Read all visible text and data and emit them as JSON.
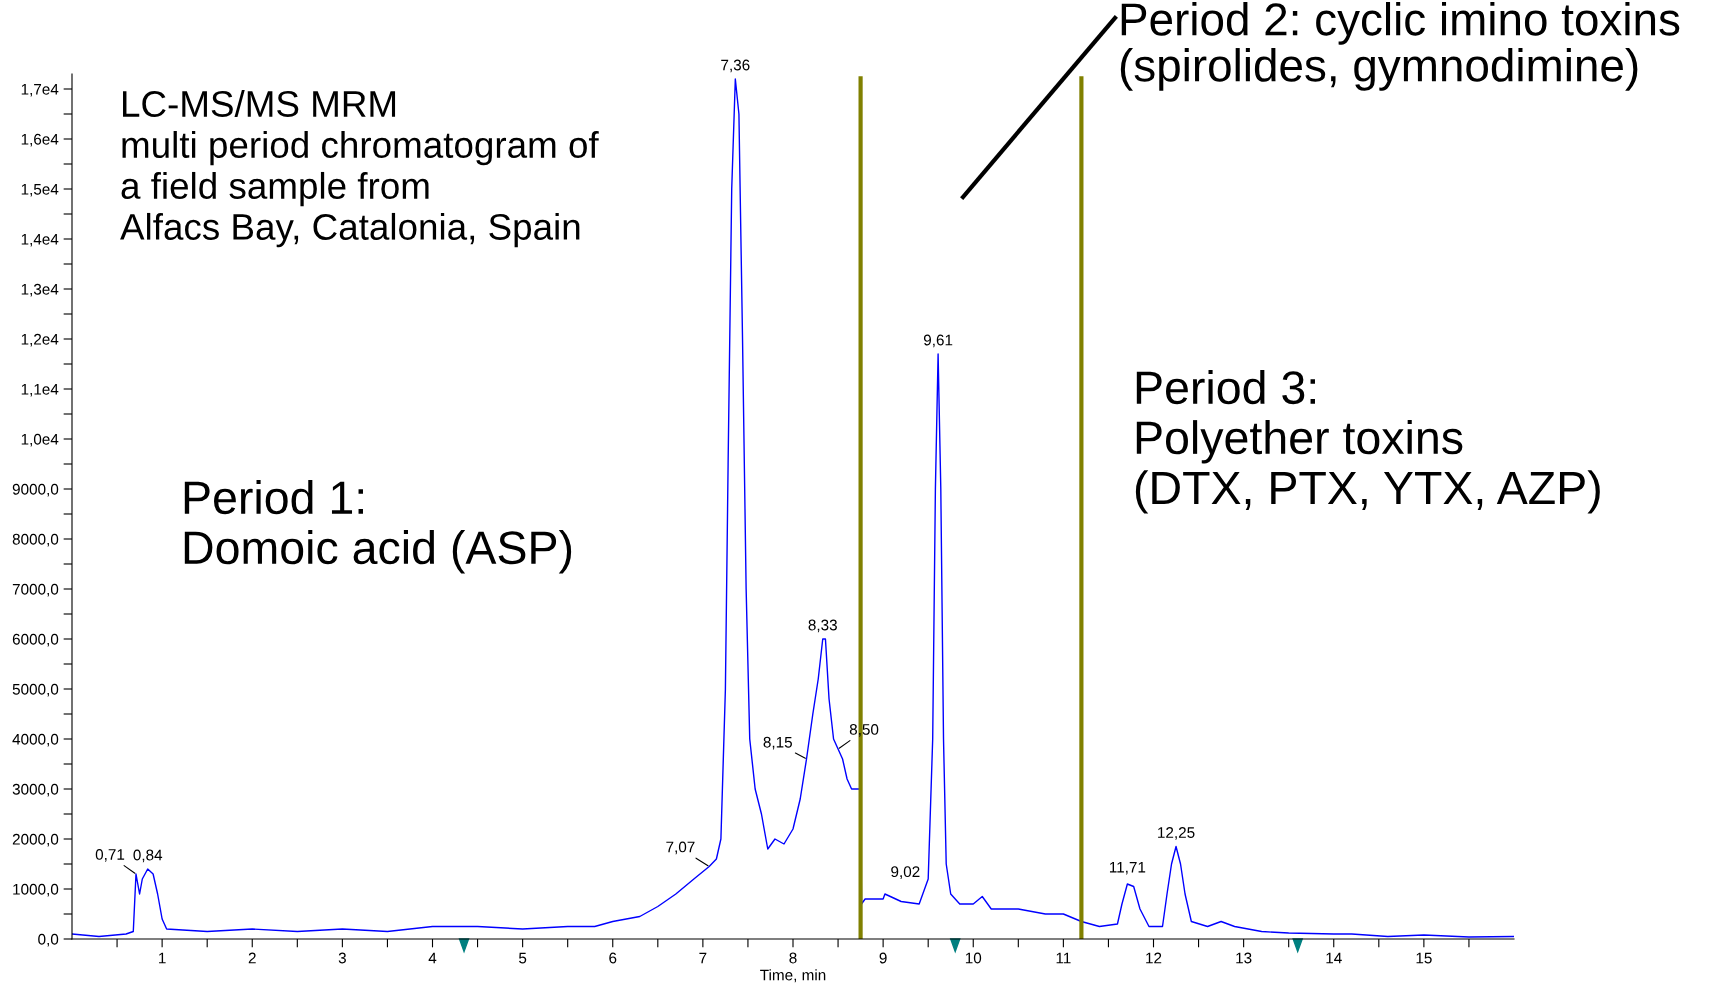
{
  "chart_data": {
    "type": "line",
    "xlabel": "Time, min",
    "x": [
      0,
      0.3,
      0.6,
      0.68,
      0.71,
      0.75,
      0.78,
      0.84,
      0.9,
      0.95,
      1.0,
      1.05,
      1.5,
      2,
      2.5,
      3,
      3.5,
      4,
      4.5,
      5,
      5.5,
      5.8,
      6.0,
      6.3,
      6.5,
      6.7,
      6.9,
      7.07,
      7.15,
      7.2,
      7.25,
      7.28,
      7.32,
      7.36,
      7.4,
      7.44,
      7.48,
      7.52,
      7.58,
      7.65,
      7.72,
      7.8,
      7.9,
      8.0,
      8.08,
      8.15,
      8.22,
      8.28,
      8.33,
      8.36,
      8.4,
      8.45,
      8.5,
      8.55,
      8.6,
      8.65,
      8.7,
      8.75,
      8.76,
      8.8,
      9.0,
      9.02,
      9.2,
      9.4,
      9.5,
      9.55,
      9.58,
      9.61,
      9.64,
      9.67,
      9.7,
      9.75,
      9.85,
      10.0,
      10.1,
      10.2,
      10.5,
      10.8,
      11.0,
      11.2,
      11.4,
      11.6,
      11.65,
      11.71,
      11.78,
      11.85,
      11.95,
      12.1,
      12.15,
      12.2,
      12.25,
      12.3,
      12.35,
      12.42,
      12.6,
      12.75,
      12.9,
      13.2,
      13.5,
      14.0,
      14.2,
      14.6,
      15.0,
      15.5,
      16.0
    ],
    "series": [
      {
        "color": "#0000ff",
        "values": [
          100,
          50,
          100,
          150,
          1300,
          900,
          1200,
          1400,
          1300,
          900,
          400,
          200,
          150,
          200,
          150,
          200,
          150,
          250,
          250,
          200,
          250,
          250,
          350,
          450,
          650,
          900,
          1200,
          1450,
          1600,
          2000,
          5000,
          9500,
          15000,
          17200,
          16500,
          12000,
          7000,
          4000,
          3000,
          2500,
          1800,
          2000,
          1900,
          2200,
          2800,
          3600,
          4500,
          5200,
          6000,
          6000,
          4800,
          4000,
          3800,
          3600,
          3200,
          3000,
          3000,
          3000,
          700,
          800,
          800,
          900,
          750,
          700,
          1200,
          4000,
          9000,
          11700,
          9000,
          4000,
          1500,
          900,
          700,
          700,
          850,
          600,
          600,
          500,
          500,
          350,
          250,
          300,
          700,
          1100,
          1050,
          600,
          250,
          250,
          900,
          1500,
          1850,
          1500,
          900,
          350,
          250,
          350,
          250,
          150,
          120,
          100,
          100,
          50,
          80,
          40,
          50
        ]
      }
    ],
    "xlim": [
      0,
      16
    ],
    "ylim": [
      0,
      17300
    ],
    "xticks": [
      {
        "value": 0.5,
        "label": null
      },
      1,
      {
        "value": 1.5,
        "label": null
      },
      2,
      {
        "value": 2.5,
        "label": null
      },
      3,
      {
        "value": 3.5,
        "label": null
      },
      4,
      {
        "value": 4.5,
        "label": null
      },
      5,
      {
        "value": 5.5,
        "label": null
      },
      6,
      {
        "value": 6.5,
        "label": null
      },
      7,
      {
        "value": 7.5,
        "label": null
      },
      8,
      {
        "value": 8.5,
        "label": null
      },
      9,
      {
        "value": 9.5,
        "label": null
      },
      10,
      {
        "value": 10.5,
        "label": null
      },
      11,
      {
        "value": 11.5,
        "label": null
      },
      12,
      {
        "value": 12.5,
        "label": null
      },
      13,
      {
        "value": 13.5,
        "label": null
      },
      14,
      {
        "value": 14.5,
        "label": null
      },
      15,
      {
        "value": 15.5,
        "label": null
      }
    ],
    "yticks": [
      {
        "value": 0,
        "label": "0,0"
      },
      {
        "value": 500,
        "label": null
      },
      {
        "value": 1000,
        "label": "1000,0"
      },
      {
        "value": 1500,
        "label": null
      },
      {
        "value": 2000,
        "label": "2000,0"
      },
      {
        "value": 2500,
        "label": null
      },
      {
        "value": 3000,
        "label": "3000,0"
      },
      {
        "value": 3500,
        "label": null
      },
      {
        "value": 4000,
        "label": "4000,0"
      },
      {
        "value": 4500,
        "label": null
      },
      {
        "value": 5000,
        "label": "5000,0"
      },
      {
        "value": 5500,
        "label": null
      },
      {
        "value": 6000,
        "label": "6000,0"
      },
      {
        "value": 6500,
        "label": null
      },
      {
        "value": 7000,
        "label": "7000,0"
      },
      {
        "value": 7500,
        "label": null
      },
      {
        "value": 8000,
        "label": "8000,0"
      },
      {
        "value": 8500,
        "label": null
      },
      {
        "value": 9000,
        "label": "9000,0"
      },
      {
        "value": 9500,
        "label": null
      },
      {
        "value": 10000,
        "label": "1,0e4"
      },
      {
        "value": 10500,
        "label": null
      },
      {
        "value": 11000,
        "label": "1,1e4"
      },
      {
        "value": 11500,
        "label": null
      },
      {
        "value": 12000,
        "label": "1,2e4"
      },
      {
        "value": 12500,
        "label": null
      },
      {
        "value": 13000,
        "label": "1,3e4"
      },
      {
        "value": 13500,
        "label": null
      },
      {
        "value": 14000,
        "label": "1,4e4"
      },
      {
        "value": 14500,
        "label": null
      },
      {
        "value": 15000,
        "label": "1,5e4"
      },
      {
        "value": 15500,
        "label": null
      },
      {
        "value": 16000,
        "label": "1,6e4"
      },
      {
        "value": 16500,
        "label": null
      },
      {
        "value": 17000,
        "label": "1,7e4"
      }
    ],
    "ref_lines": [
      {
        "axis": "x",
        "value": 8.75,
        "color": "#808000"
      },
      {
        "axis": "x",
        "value": 11.2,
        "color": "#808000"
      }
    ],
    "grid": false,
    "marker": "none",
    "line_style": "solid",
    "annotations": [
      "LC-MS/MS MRM\nmulti period chromatogram of\na field sample from\nAlfacs Bay, Catalonia, Spain",
      "Period 1:\nDomoic acid (ASP)",
      "Period 2: cyclic imino toxins\n(spirolides, gymnodimine)",
      "Period 3:\nPolyether toxins\n(DTX, PTX, YTX, AZP)",
      {
        "text": "0,71",
        "x": 0.71,
        "y": 1300
      },
      {
        "text": "0,84",
        "x": 0.84,
        "y": 1400
      },
      {
        "text": "7,07",
        "x": 7.07,
        "y": 1450
      },
      {
        "text": "7,36",
        "x": 7.36,
        "y": 17200
      },
      {
        "text": "8,15",
        "x": 8.15,
        "y": 3600
      },
      {
        "text": "8,33",
        "x": 8.33,
        "y": 6000
      },
      {
        "text": "8,50",
        "x": 8.5,
        "y": 3800
      },
      {
        "text": "9,02",
        "x": 9.02,
        "y": 900
      },
      {
        "text": "9,61",
        "x": 9.61,
        "y": 11700
      },
      {
        "text": "11,71",
        "x": 11.71,
        "y": 1100
      },
      {
        "text": "12,25",
        "x": 12.25,
        "y": 1850
      }
    ]
  }
}
